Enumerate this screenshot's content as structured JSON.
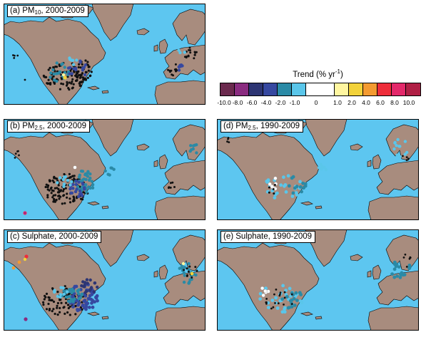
{
  "panels": [
    {
      "id": "a",
      "label_prefix": "(a) PM",
      "label_sub": "10",
      "label_suffix": ", 2000-2009"
    },
    {
      "id": "b",
      "label_prefix": "(b) PM",
      "label_sub": "2.5",
      "label_suffix": ", 2000-2009"
    },
    {
      "id": "c",
      "label_prefix": "(c) Sulphate, 2000-2009",
      "label_sub": "",
      "label_suffix": ""
    },
    {
      "id": "d",
      "label_prefix": "(d) PM",
      "label_sub": "2.5",
      "label_suffix": ", 1990-2009"
    },
    {
      "id": "e",
      "label_prefix": "(e) Sulphate, 1990-2009",
      "label_sub": "",
      "label_suffix": ""
    }
  ],
  "legend": {
    "title_prefix": "Trend (% yr",
    "title_sup": "-1",
    "title_suffix": ")",
    "bins": [
      {
        "color": "#6b2a4e"
      },
      {
        "color": "#8a2c80"
      },
      {
        "color": "#2d3573"
      },
      {
        "color": "#3648a0"
      },
      {
        "color": "#2a8aa6"
      },
      {
        "color": "#5ac6ea"
      },
      {
        "color": "#ffffff",
        "wide": true
      },
      {
        "color": "#fff6a0"
      },
      {
        "color": "#f2d23a"
      },
      {
        "color": "#f39a30"
      },
      {
        "color": "#ee2d3a"
      },
      {
        "color": "#e3286a"
      },
      {
        "color": "#b01f45"
      }
    ],
    "ticks": [
      "-10.0",
      "-8.0",
      "-6.0",
      "-4.0",
      "-2.0",
      "-1.0",
      "0",
      "1.0",
      "2.0",
      "4.0",
      "6.0",
      "8.0",
      "10.0"
    ]
  },
  "colors": {
    "ocean": "#5dc6f0",
    "land": "#a88c7e",
    "no_trend": "#111111",
    "c_neg10": "#6b2a4e",
    "c_neg8": "#8a2c80",
    "c_neg6": "#2d3573",
    "c_neg4": "#3648a0",
    "c_neg2": "#2a8aa6",
    "c_neg1": "#5ac6ea",
    "c_zero": "#ffffff",
    "c_pos1": "#fff6a0",
    "c_pos2": "#f2d23a",
    "c_pos4": "#f39a30",
    "c_pos6": "#ee2d3a",
    "c_pos8": "#e3286a"
  }
}
